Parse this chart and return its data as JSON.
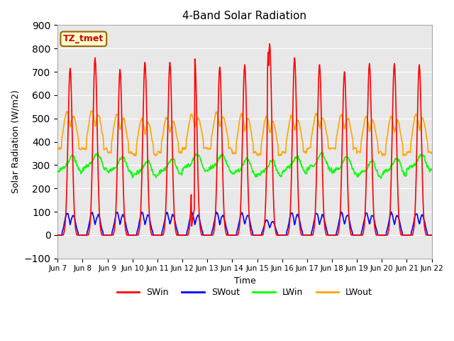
{
  "title": "4-Band Solar Radiation",
  "xlabel": "Time",
  "ylabel": "Solar Radiation (W/m2)",
  "ylim": [
    -100,
    900
  ],
  "yticks": [
    -100,
    0,
    100,
    200,
    300,
    400,
    500,
    600,
    700,
    800,
    900
  ],
  "start_day": 7,
  "end_day": 22,
  "num_days": 15,
  "colors": {
    "SWin": "#ff0000",
    "SWout": "#0000ff",
    "LWin": "#00ff00",
    "LWout": "#ffa500"
  },
  "annotation_text": "TZ_tmet",
  "annotation_bg": "#ffffcc",
  "annotation_border": "#996600",
  "annotation_text_color": "#cc0000",
  "bg_color": "#e8e8e8",
  "grid_color": "#ffffff",
  "line_width": 1.2,
  "xtick_labels": [
    "Jun 7",
    "Jun 8",
    "Jun 9",
    "Jun 10",
    "Jun 11",
    "Jun 12",
    "Jun 13",
    "Jun 14",
    "Jun 15",
    "Jun 16",
    "Jun 17",
    "Jun 18",
    "Jun 19",
    "Jun 20",
    "Jun 21",
    "Jun 22"
  ]
}
